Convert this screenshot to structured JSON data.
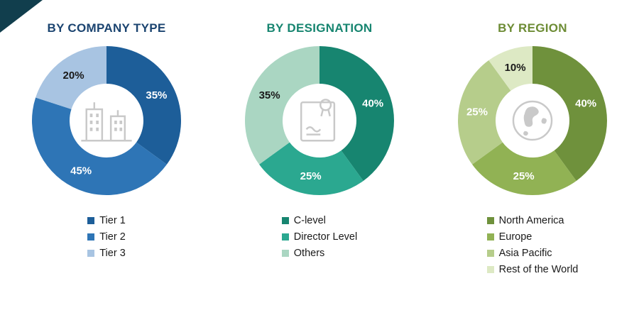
{
  "page": {
    "corner_accent_color": "#113e4d",
    "background": "#ffffff"
  },
  "chart_data": [
    {
      "type": "pie",
      "title": "BY COMPANY TYPE",
      "title_color": "#1b4470",
      "center_icon": "buildings-icon",
      "legend_position": "bottom",
      "slices": [
        {
          "label": "Tier 1",
          "value": 35,
          "label_text": "35%",
          "color": "#1d5e99",
          "label_color": "#ffffff"
        },
        {
          "label": "Tier 2",
          "value": 45,
          "label_text": "45%",
          "color": "#2e75b6",
          "label_color": "#ffffff"
        },
        {
          "label": "Tier 3",
          "value": 20,
          "label_text": "20%",
          "color": "#a8c4e2",
          "label_color": "#1a1a1a"
        }
      ]
    },
    {
      "type": "pie",
      "title": "BY DESIGNATION",
      "title_color": "#178570",
      "center_icon": "certificate-icon",
      "legend_position": "bottom",
      "slices": [
        {
          "label": "C-level",
          "value": 40,
          "label_text": "40%",
          "color": "#178570",
          "label_color": "#ffffff"
        },
        {
          "label": "Director Level",
          "value": 25,
          "label_text": "25%",
          "color": "#2ba890",
          "label_color": "#ffffff"
        },
        {
          "label": "Others",
          "value": 35,
          "label_text": "35%",
          "color": "#aad6c2",
          "label_color": "#1a1a1a"
        }
      ]
    },
    {
      "type": "pie",
      "title": "BY REGION",
      "title_color": "#6d8c35",
      "center_icon": "globe-icon",
      "legend_position": "bottom",
      "slices": [
        {
          "label": "North America",
          "value": 40,
          "label_text": "40%",
          "color": "#6f913c",
          "label_color": "#ffffff"
        },
        {
          "label": "Europe",
          "value": 25,
          "label_text": "25%",
          "color": "#91b254",
          "label_color": "#ffffff"
        },
        {
          "label": "Asia Pacific",
          "value": 25,
          "label_text": "25%",
          "color": "#b6cd8b",
          "label_color": "#ffffff"
        },
        {
          "label": "Rest of the World",
          "value": 10,
          "label_text": "10%",
          "color": "#dde9c4",
          "label_color": "#1a1a1a"
        }
      ]
    }
  ]
}
